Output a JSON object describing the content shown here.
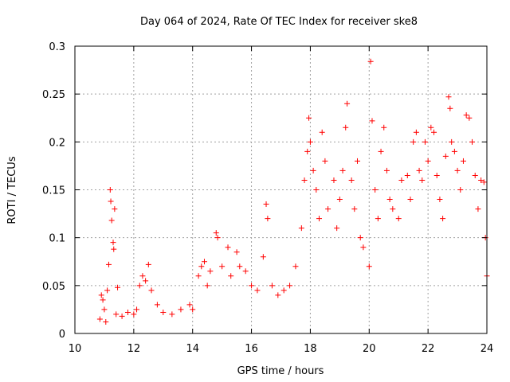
{
  "chart_data": {
    "type": "scatter",
    "title": "Day 064 of 2024, Rate Of TEC Index for receiver ske8",
    "xlabel": "GPS time / hours",
    "ylabel": "ROTI / TECUs",
    "xlim": [
      10,
      24
    ],
    "ylim": [
      0,
      0.3
    ],
    "xticks": [
      10,
      12,
      14,
      16,
      18,
      20,
      22,
      24
    ],
    "xtick_labels": [
      "10",
      "12",
      "14",
      "16",
      "18",
      "20",
      "22",
      "24"
    ],
    "yticks": [
      0,
      0.05,
      0.1,
      0.15,
      0.2,
      0.25,
      0.3
    ],
    "ytick_labels": [
      "0",
      "0.05",
      "0.1",
      "0.15",
      "0.2",
      "0.25",
      "0.3"
    ],
    "grid": true,
    "marker": "+",
    "color": "#ff0000",
    "series": [
      {
        "name": "ROTI",
        "points": [
          [
            10.85,
            0.015
          ],
          [
            10.9,
            0.04
          ],
          [
            10.95,
            0.035
          ],
          [
            11.0,
            0.025
          ],
          [
            11.05,
            0.012
          ],
          [
            11.1,
            0.045
          ],
          [
            11.15,
            0.072
          ],
          [
            11.2,
            0.15
          ],
          [
            11.22,
            0.138
          ],
          [
            11.25,
            0.118
          ],
          [
            11.3,
            0.095
          ],
          [
            11.32,
            0.088
          ],
          [
            11.35,
            0.13
          ],
          [
            11.4,
            0.02
          ],
          [
            11.45,
            0.048
          ],
          [
            11.6,
            0.018
          ],
          [
            11.8,
            0.022
          ],
          [
            12.0,
            0.02
          ],
          [
            12.1,
            0.025
          ],
          [
            12.2,
            0.05
          ],
          [
            12.3,
            0.06
          ],
          [
            12.4,
            0.055
          ],
          [
            12.5,
            0.072
          ],
          [
            12.6,
            0.045
          ],
          [
            12.8,
            0.03
          ],
          [
            13.0,
            0.022
          ],
          [
            13.3,
            0.02
          ],
          [
            13.6,
            0.025
          ],
          [
            13.9,
            0.03
          ],
          [
            14.0,
            0.025
          ],
          [
            14.2,
            0.06
          ],
          [
            14.3,
            0.07
          ],
          [
            14.4,
            0.075
          ],
          [
            14.5,
            0.05
          ],
          [
            14.6,
            0.065
          ],
          [
            14.8,
            0.105
          ],
          [
            14.85,
            0.1
          ],
          [
            15.0,
            0.07
          ],
          [
            15.2,
            0.09
          ],
          [
            15.3,
            0.06
          ],
          [
            15.5,
            0.085
          ],
          [
            15.6,
            0.07
          ],
          [
            15.8,
            0.065
          ],
          [
            16.0,
            0.05
          ],
          [
            16.2,
            0.045
          ],
          [
            16.4,
            0.08
          ],
          [
            16.5,
            0.135
          ],
          [
            16.55,
            0.12
          ],
          [
            16.7,
            0.05
          ],
          [
            16.9,
            0.04
          ],
          [
            17.1,
            0.045
          ],
          [
            17.3,
            0.05
          ],
          [
            17.5,
            0.07
          ],
          [
            17.7,
            0.11
          ],
          [
            17.8,
            0.16
          ],
          [
            17.9,
            0.19
          ],
          [
            17.95,
            0.225
          ],
          [
            18.0,
            0.2
          ],
          [
            18.1,
            0.17
          ],
          [
            18.2,
            0.15
          ],
          [
            18.3,
            0.12
          ],
          [
            18.4,
            0.21
          ],
          [
            18.5,
            0.18
          ],
          [
            18.6,
            0.13
          ],
          [
            18.8,
            0.16
          ],
          [
            18.9,
            0.11
          ],
          [
            19.0,
            0.14
          ],
          [
            19.1,
            0.17
          ],
          [
            19.2,
            0.215
          ],
          [
            19.25,
            0.24
          ],
          [
            19.4,
            0.16
          ],
          [
            19.5,
            0.13
          ],
          [
            19.6,
            0.18
          ],
          [
            19.7,
            0.1
          ],
          [
            19.8,
            0.09
          ],
          [
            20.0,
            0.07
          ],
          [
            20.05,
            0.284
          ],
          [
            20.1,
            0.222
          ],
          [
            20.2,
            0.15
          ],
          [
            20.3,
            0.12
          ],
          [
            20.4,
            0.19
          ],
          [
            20.5,
            0.215
          ],
          [
            20.6,
            0.17
          ],
          [
            20.7,
            0.14
          ],
          [
            20.8,
            0.13
          ],
          [
            21.0,
            0.12
          ],
          [
            21.1,
            0.16
          ],
          [
            21.3,
            0.165
          ],
          [
            21.4,
            0.14
          ],
          [
            21.5,
            0.2
          ],
          [
            21.6,
            0.21
          ],
          [
            21.7,
            0.17
          ],
          [
            21.8,
            0.16
          ],
          [
            21.9,
            0.2
          ],
          [
            22.0,
            0.18
          ],
          [
            22.1,
            0.215
          ],
          [
            22.2,
            0.21
          ],
          [
            22.3,
            0.165
          ],
          [
            22.4,
            0.14
          ],
          [
            22.5,
            0.12
          ],
          [
            22.6,
            0.185
          ],
          [
            22.7,
            0.247
          ],
          [
            22.75,
            0.235
          ],
          [
            22.8,
            0.2
          ],
          [
            22.9,
            0.19
          ],
          [
            23.0,
            0.17
          ],
          [
            23.1,
            0.15
          ],
          [
            23.2,
            0.18
          ],
          [
            23.3,
            0.228
          ],
          [
            23.4,
            0.225
          ],
          [
            23.5,
            0.2
          ],
          [
            23.6,
            0.165
          ],
          [
            23.7,
            0.13
          ],
          [
            23.8,
            0.16
          ],
          [
            23.9,
            0.158
          ],
          [
            23.95,
            0.1
          ],
          [
            24.0,
            0.06
          ]
        ]
      }
    ]
  }
}
